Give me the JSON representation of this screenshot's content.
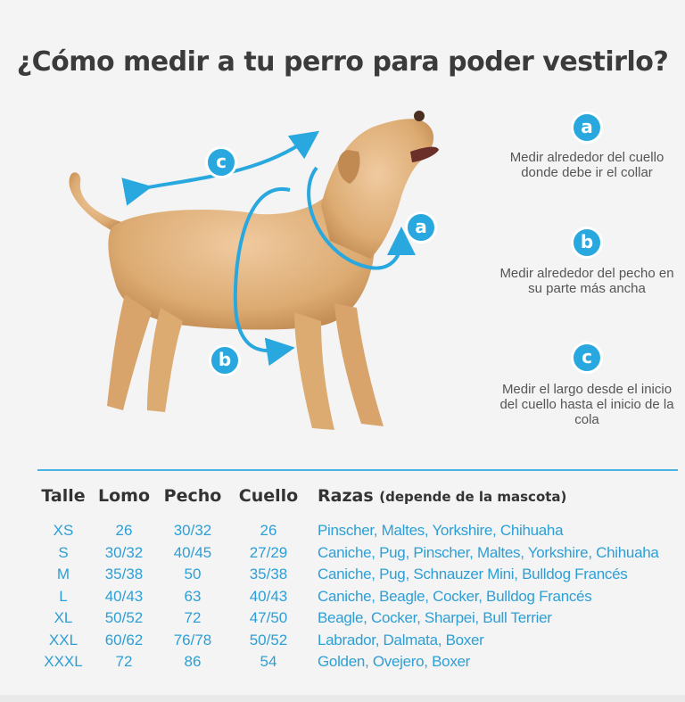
{
  "title": "¿Cómo medir a tu perro para poder vestirlo?",
  "legend": [
    {
      "letter": "a",
      "text": "Medir alrededor del cuello donde debe ir el collar"
    },
    {
      "letter": "b",
      "text": "Medir alrededor del pecho en su parte más ancha"
    },
    {
      "letter": "c",
      "text": "Medir el largo desde el inicio del cuello hasta el inicio de la cola"
    }
  ],
  "diagram_labels": {
    "a": "a",
    "b": "b",
    "c": "c"
  },
  "table": {
    "headers": {
      "talle": "Talle",
      "lomo": "Lomo",
      "pecho": "Pecho",
      "cuello": "Cuello",
      "razas": "Razas",
      "razas_note": "(depende de la mascota)"
    },
    "rows": [
      {
        "talle": "XS",
        "lomo": "26",
        "pecho": "30/32",
        "cuello": "26",
        "razas": "Pinscher, Maltes, Yorkshire, Chihuaha"
      },
      {
        "talle": "S",
        "lomo": "30/32",
        "pecho": "40/45",
        "cuello": "27/29",
        "razas": "Caniche, Pug, Pinscher, Maltes, Yorkshire, Chihuaha"
      },
      {
        "talle": "M",
        "lomo": "35/38",
        "pecho": "50",
        "cuello": "35/38",
        "razas": "Caniche, Pug, Schnauzer Mini, Bulldog Francés"
      },
      {
        "talle": "L",
        "lomo": "40/43",
        "pecho": "63",
        "cuello": "40/43",
        "razas": "Caniche, Beagle, Cocker, Bulldog Francés"
      },
      {
        "talle": "XL",
        "lomo": "50/52",
        "pecho": "72",
        "cuello": "47/50",
        "razas": "Beagle, Cocker, Sharpei, Bull Terrier"
      },
      {
        "talle": "XXL",
        "lomo": "60/62",
        "pecho": "76/78",
        "cuello": "50/52",
        "razas": "Labrador, Dalmata, Boxer"
      },
      {
        "talle": "XXXL",
        "lomo": "72",
        "pecho": "86",
        "cuello": "54",
        "razas": "Golden, Ovejero, Boxer"
      }
    ]
  },
  "colors": {
    "accent": "#29a8df",
    "dog_fur": "#e0b27a"
  }
}
